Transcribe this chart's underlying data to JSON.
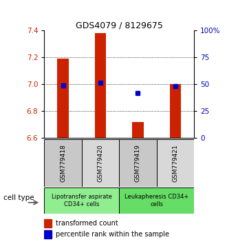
{
  "title": "GDS4079 / 8129675",
  "samples": [
    "GSM779418",
    "GSM779420",
    "GSM779419",
    "GSM779421"
  ],
  "red_values": [
    7.19,
    7.38,
    6.72,
    7.0
  ],
  "blue_values": [
    6.99,
    7.01,
    6.935,
    6.985
  ],
  "ylim_left": [
    6.6,
    7.4
  ],
  "ylim_right": [
    0,
    100
  ],
  "yticks_left": [
    6.6,
    6.8,
    7.0,
    7.2,
    7.4
  ],
  "yticks_right": [
    0,
    25,
    50,
    75,
    100
  ],
  "ytick_labels_right": [
    "0",
    "25",
    "50",
    "75",
    "100%"
  ],
  "cell_types": [
    {
      "label": "Lipotransfer aspirate\nCD34+ cells",
      "samples": [
        0,
        1
      ],
      "color": "#90ee90"
    },
    {
      "label": "Leukapheresis CD34+\ncells",
      "samples": [
        2,
        3
      ],
      "color": "#66dd66"
    }
  ],
  "red_color": "#cc2200",
  "blue_color": "#0000cc",
  "bar_bottom": 6.6,
  "grid_lines": [
    6.8,
    7.0,
    7.2
  ],
  "cell_type_label": "cell type",
  "legend_red": "transformed count",
  "legend_blue": "percentile rank within the sample",
  "bar_width": 0.3,
  "left_color": "#cc2200",
  "right_color": "#0000bb",
  "sample_bg": [
    "#c8c8c8",
    "#d8d8d8",
    "#c8c8c8",
    "#d8d8d8"
  ],
  "title_fontsize": 9
}
